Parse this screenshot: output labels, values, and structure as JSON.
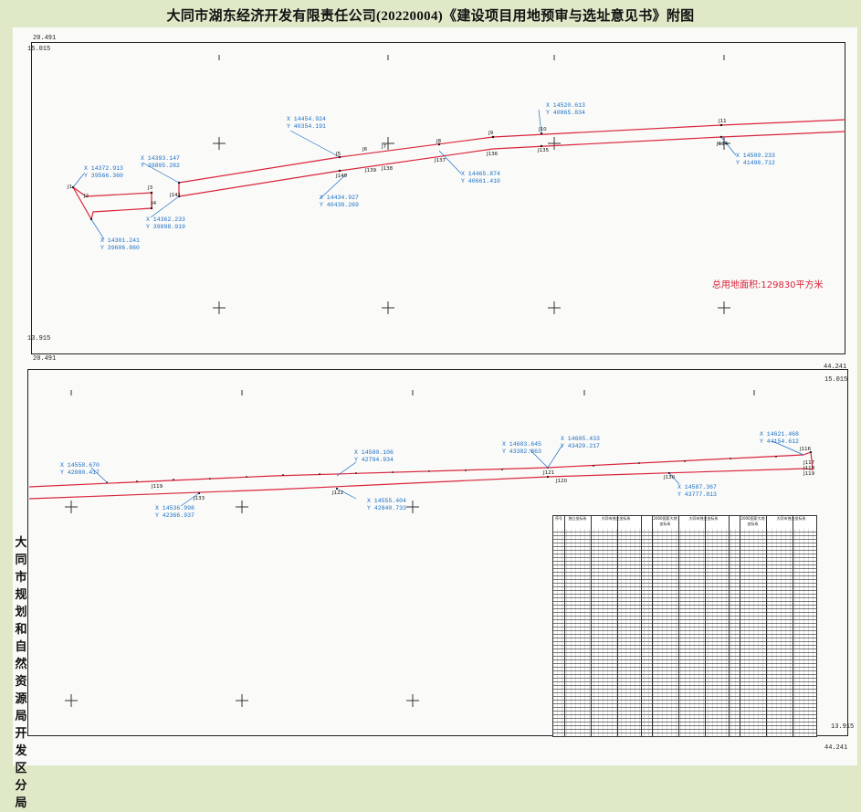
{
  "title": "大同市湖东经济开发有限责任公司(20220004)《建设项目用地预审与选址意见书》附图",
  "area_label": "总用地面积:129830平方米",
  "side_stamp": "大同市规划和自然资源局开发区分局",
  "frame_labels": {
    "upper_top_left_x": "20.491",
    "upper_top_left_y": "15.015",
    "upper_bottom_left_y": "13.915",
    "upper_bottom_left_x": "20.491",
    "lower_top_right_x": "44.241",
    "lower_top_right_y": "15.015",
    "lower_bottom_right_y": "13.915",
    "lower_bottom_right_x": "44.241"
  },
  "upper_callouts": [
    {
      "x": "X 14372.913",
      "y": "Y 39566.360"
    },
    {
      "x": "X 14301.241",
      "y": "Y 39606.860"
    },
    {
      "x": "X 14393.147",
      "y": "Y 39895.282"
    },
    {
      "x": "X 14362.233",
      "y": "Y 39898.919"
    },
    {
      "x": "X 14454.924",
      "y": "Y 40354.191"
    },
    {
      "x": "X 14434.927",
      "y": "Y 40438.269"
    },
    {
      "x": "X 14465.874",
      "y": "Y 40661.410"
    },
    {
      "x": "X 14520.613",
      "y": "Y 40865.834"
    },
    {
      "x": "X 14509.233",
      "y": "Y 41498.712"
    }
  ],
  "lower_callouts": [
    {
      "x": "X 14558.670",
      "y": "Y 42080.417"
    },
    {
      "x": "X 14536.998",
      "y": "Y 42366.937"
    },
    {
      "x": "X 14580.106",
      "y": "Y 42794.934"
    },
    {
      "x": "X 14555.404",
      "y": "Y 42840.733"
    },
    {
      "x": "X 14603.645",
      "y": "Y 43382.863"
    },
    {
      "x": "X 14605.433",
      "y": "Y 43429.217"
    },
    {
      "x": "X 14587.367",
      "y": "Y 43777.813"
    },
    {
      "x": "X 14621.468",
      "y": "Y 44154.612"
    }
  ],
  "upper_points": [
    "J1",
    "J2",
    "J3",
    "J4",
    "J5",
    "J6",
    "J7",
    "J8",
    "J9",
    "J10",
    "J11",
    "J12",
    "J139",
    "J138",
    "J137",
    "J136",
    "J135",
    "J134",
    "J140",
    "J141"
  ],
  "lower_points": [
    "J119",
    "J133",
    "J122",
    "J121",
    "J120",
    "J130",
    "J116",
    "J117",
    "J118",
    "J119"
  ],
  "table_headers": [
    "序号",
    "独立坐标系",
    "大同市独立坐标系",
    "2000国家大地坐标系",
    "大同市独立坐标系",
    "2000国家大地坐标系",
    "大同市独立坐标系"
  ]
}
